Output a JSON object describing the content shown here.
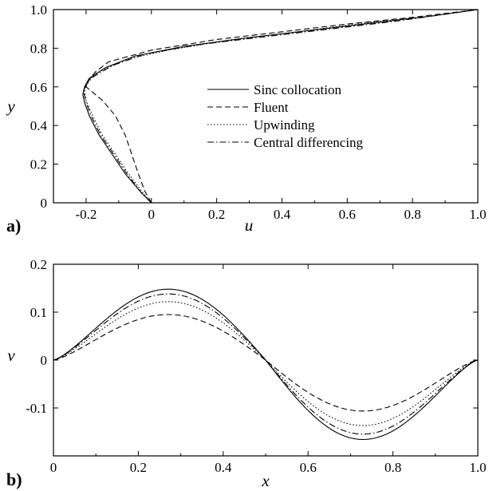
{
  "chart_data": [
    {
      "type": "line",
      "panel_label": "a)",
      "xlabel": "u",
      "ylabel": "y",
      "xlim": [
        -0.3,
        1.0
      ],
      "ylim": [
        0,
        1.0
      ],
      "xticks": [
        "-0.2",
        "0",
        "0.2",
        "0.4",
        "0.6",
        "0.8",
        "1.0"
      ],
      "xtick_values": [
        -0.2,
        0,
        0.2,
        0.4,
        0.6,
        0.8,
        1.0
      ],
      "yticks": [
        "0",
        "0.2",
        "0.4",
        "0.6",
        "0.8",
        "1.0"
      ],
      "ytick_values": [
        0,
        0.2,
        0.4,
        0.6,
        0.8,
        1.0
      ],
      "legend_position": "center",
      "series": [
        {
          "name": "Sinc collocation",
          "dash": "solid",
          "points": [
            [
              0,
              0
            ],
            [
              -0.03,
              0.05
            ],
            [
              -0.08,
              0.15
            ],
            [
              -0.12,
              0.25
            ],
            [
              -0.16,
              0.35
            ],
            [
              -0.19,
              0.45
            ],
            [
              -0.205,
              0.52
            ],
            [
              -0.21,
              0.56
            ],
            [
              -0.205,
              0.6
            ],
            [
              -0.19,
              0.645
            ],
            [
              -0.14,
              0.7
            ],
            [
              -0.05,
              0.76
            ],
            [
              0.1,
              0.81
            ],
            [
              0.3,
              0.855
            ],
            [
              0.5,
              0.895
            ],
            [
              0.7,
              0.935
            ],
            [
              0.85,
              0.965
            ],
            [
              1.0,
              1.0
            ]
          ]
        },
        {
          "name": "Fluent",
          "dash": "dashed",
          "points": [
            [
              0,
              0
            ],
            [
              -0.02,
              0.06
            ],
            [
              -0.04,
              0.15
            ],
            [
              -0.06,
              0.25
            ],
            [
              -0.08,
              0.35
            ],
            [
              -0.11,
              0.45
            ],
            [
              -0.15,
              0.53
            ],
            [
              -0.2,
              0.6
            ],
            [
              -0.19,
              0.64
            ],
            [
              -0.17,
              0.68
            ],
            [
              -0.13,
              0.73
            ],
            [
              0.0,
              0.79
            ],
            [
              0.2,
              0.845
            ],
            [
              0.4,
              0.885
            ],
            [
              0.6,
              0.925
            ],
            [
              0.8,
              0.96
            ],
            [
              1.0,
              1.0
            ]
          ]
        },
        {
          "name": "Upwinding",
          "dash": "dotted",
          "points": [
            [
              0,
              0
            ],
            [
              -0.025,
              0.05
            ],
            [
              -0.07,
              0.15
            ],
            [
              -0.11,
              0.25
            ],
            [
              -0.15,
              0.35
            ],
            [
              -0.18,
              0.45
            ],
            [
              -0.2,
              0.53
            ],
            [
              -0.205,
              0.58
            ],
            [
              -0.2,
              0.62
            ],
            [
              -0.17,
              0.67
            ],
            [
              -0.08,
              0.74
            ],
            [
              0.05,
              0.79
            ],
            [
              0.25,
              0.845
            ],
            [
              0.45,
              0.885
            ],
            [
              0.65,
              0.93
            ],
            [
              0.85,
              0.965
            ],
            [
              1.0,
              1.0
            ]
          ]
        },
        {
          "name": "Central differencing",
          "dash": "dashdot",
          "points": [
            [
              0,
              0
            ],
            [
              -0.03,
              0.05
            ],
            [
              -0.075,
              0.15
            ],
            [
              -0.115,
              0.25
            ],
            [
              -0.155,
              0.35
            ],
            [
              -0.185,
              0.45
            ],
            [
              -0.2,
              0.52
            ],
            [
              -0.207,
              0.57
            ],
            [
              -0.2,
              0.61
            ],
            [
              -0.18,
              0.65
            ],
            [
              -0.12,
              0.71
            ],
            [
              -0.02,
              0.77
            ],
            [
              0.15,
              0.82
            ],
            [
              0.35,
              0.86
            ],
            [
              0.55,
              0.9
            ],
            [
              0.75,
              0.94
            ],
            [
              1.0,
              1.0
            ]
          ]
        }
      ]
    },
    {
      "type": "line",
      "panel_label": "b)",
      "xlabel": "x",
      "ylabel": "v",
      "xlim": [
        0,
        1.0
      ],
      "ylim": [
        -0.2,
        0.2
      ],
      "xticks": [
        "0",
        "0.2",
        "0.4",
        "0.6",
        "0.8",
        "1.0"
      ],
      "xtick_values": [
        0,
        0.2,
        0.4,
        0.6,
        0.8,
        1.0
      ],
      "yticks": [
        "0.2",
        "0.1",
        "0",
        "-0.1"
      ],
      "ytick_values": [
        0.2,
        0.1,
        0,
        -0.1
      ],
      "series": [
        {
          "name": "Sinc collocation",
          "dash": "solid",
          "amplitude": 0.148
        },
        {
          "name": "Fluent",
          "dash": "dashed",
          "amplitude": 0.095
        },
        {
          "name": "Upwinding",
          "dash": "dotted",
          "amplitude": 0.122
        },
        {
          "name": "Central differencing",
          "dash": "dashdot",
          "amplitude": 0.138
        }
      ]
    }
  ]
}
